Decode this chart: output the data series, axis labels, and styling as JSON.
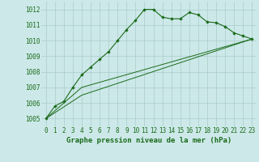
{
  "bg_color": "#cce8e8",
  "grid_color": "#aacccc",
  "line_color": "#1a6b1a",
  "marker_color": "#1a6b1a",
  "xlabel": "Graphe pression niveau de la mer (hPa)",
  "xlabel_fontsize": 6.5,
  "xtick_fontsize": 5.5,
  "ytick_fontsize": 5.5,
  "xlim": [
    -0.5,
    23.5
  ],
  "ylim": [
    1004.5,
    1012.5
  ],
  "yticks": [
    1005,
    1006,
    1007,
    1008,
    1009,
    1010,
    1011,
    1012
  ],
  "xticks": [
    0,
    1,
    2,
    3,
    4,
    5,
    6,
    7,
    8,
    9,
    10,
    11,
    12,
    13,
    14,
    15,
    16,
    17,
    18,
    19,
    20,
    21,
    22,
    23
  ],
  "series1_x": [
    0,
    1,
    2,
    3,
    4,
    5,
    6,
    7,
    8,
    9,
    10,
    11,
    12,
    13,
    14,
    15,
    16,
    17,
    18,
    19,
    20,
    21,
    22,
    23
  ],
  "series1_y": [
    1005.0,
    1005.8,
    1006.1,
    1007.0,
    1007.8,
    1008.3,
    1008.8,
    1009.3,
    1010.0,
    1010.7,
    1011.3,
    1012.0,
    1012.0,
    1011.5,
    1011.4,
    1011.4,
    1011.8,
    1011.65,
    1011.2,
    1011.15,
    1010.9,
    1010.5,
    1010.3,
    1010.1
  ],
  "series2_x": [
    0,
    4,
    23
  ],
  "series2_y": [
    1005.0,
    1007.0,
    1010.1
  ],
  "series3_x": [
    0,
    4,
    23
  ],
  "series3_y": [
    1005.0,
    1006.5,
    1010.1
  ]
}
